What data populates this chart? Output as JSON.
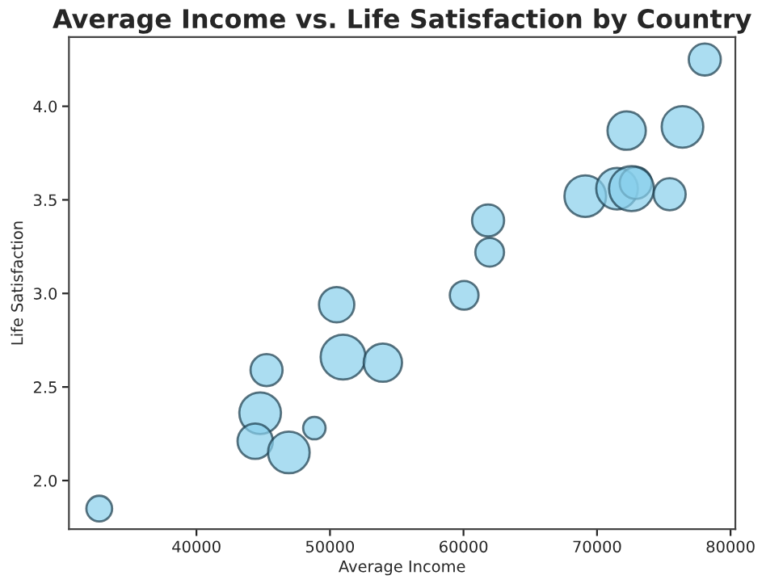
{
  "chart_data": {
    "type": "bubble",
    "title": "Average Income vs. Life Satisfaction by Country",
    "xlabel": "Average Income",
    "ylabel": "Life Satisfaction",
    "x": [
      32720,
      45250,
      44770,
      44400,
      46920,
      48830,
      50500,
      50980,
      53960,
      60050,
      61840,
      61960,
      69120,
      71500,
      72900,
      72580,
      75440,
      72220,
      76400,
      78070
    ],
    "values": [
      1.85,
      2.59,
      2.36,
      2.21,
      2.15,
      2.28,
      2.94,
      2.66,
      2.63,
      2.99,
      3.39,
      3.22,
      3.52,
      3.56,
      3.59,
      3.56,
      3.53,
      3.87,
      3.89,
      4.25
    ],
    "sizes": [
      0.33,
      0.51,
      0.86,
      0.62,
      0.86,
      0.25,
      0.62,
      1,
      0.73,
      0.41,
      0.51,
      0.41,
      0.86,
      0.86,
      0.51,
      1,
      0.51,
      0.73,
      0.86,
      0.51
    ],
    "color": "#87ceeb",
    "xlim": [
      30450,
      80360
    ],
    "ylim": [
      1.74,
      4.37
    ],
    "xticks": [
      40000,
      50000,
      60000,
      70000,
      80000
    ],
    "yticks": [
      {
        "value": 2,
        "label": "2.0"
      },
      2.5,
      {
        "value": 3,
        "label": "3.0"
      },
      3.5,
      {
        "value": 4,
        "label": "4.0"
      }
    ],
    "grid": false
  }
}
